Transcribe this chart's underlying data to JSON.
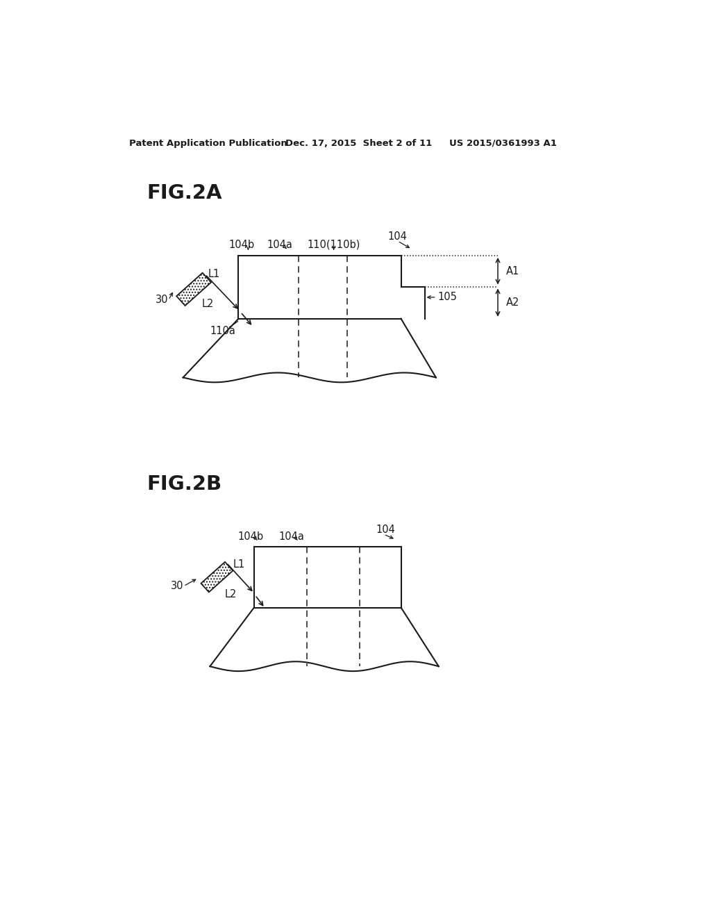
{
  "bg_color": "#ffffff",
  "header_left": "Patent Application Publication",
  "header_mid": "Dec. 17, 2015  Sheet 2 of 11",
  "header_right": "US 2015/0361993 A1",
  "fig2a_label": "FIG.2A",
  "fig2b_label": "FIG.2B",
  "line_color": "#1a1a1a",
  "text_color": "#1a1a1a"
}
